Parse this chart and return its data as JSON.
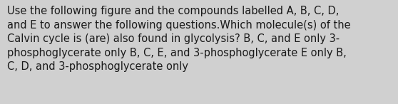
{
  "text": "Use the following figure and the compounds labelled A, B, C, D,\nand E to answer the following questions.Which molecule(s) of the\nCalvin cycle is (are) also found in glycolysis? B, C, and E only 3-\nphosphoglycerate only B, C, E, and 3-phosphoglycerate E only B,\nC, D, and 3-phosphoglycerate only",
  "background_color": "#d0d0d0",
  "text_color": "#1a1a1a",
  "font_size": 10.5,
  "fig_width": 5.58,
  "fig_height": 1.46,
  "dpi": 100
}
